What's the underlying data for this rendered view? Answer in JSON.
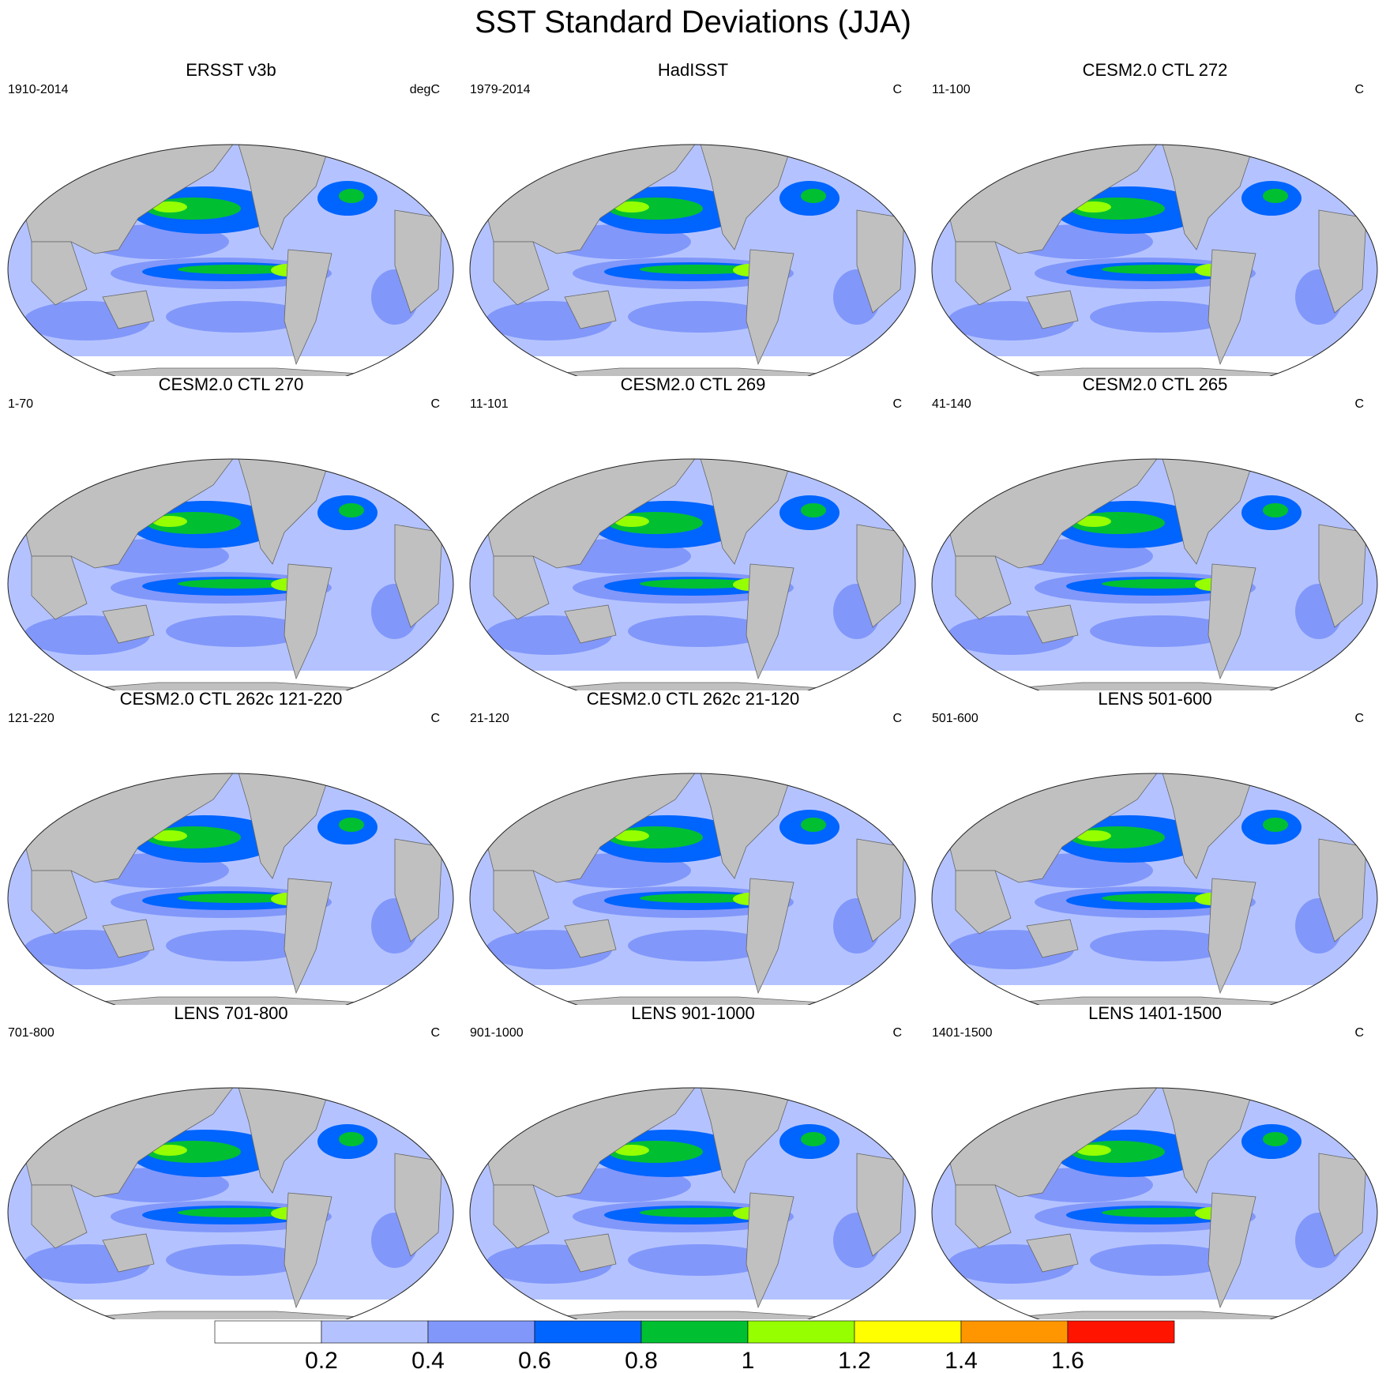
{
  "title": "SST Standard Deviations (JJA)",
  "panels": [
    {
      "title": "ERSST v3b",
      "period": "1910-2014",
      "units": "degC"
    },
    {
      "title": "HadISST",
      "period": "1979-2014",
      "units": "C"
    },
    {
      "title": "CESM2.0 CTL 272",
      "period": "11-100",
      "units": "C"
    },
    {
      "title": "CESM2.0 CTL 270",
      "period": "1-70",
      "units": "C"
    },
    {
      "title": "CESM2.0 CTL 269",
      "period": "11-101",
      "units": "C"
    },
    {
      "title": "CESM2.0 CTL 265",
      "period": "41-140",
      "units": "C"
    },
    {
      "title": "CESM2.0 CTL 262c 121-220",
      "period": "121-220",
      "units": "C"
    },
    {
      "title": "CESM2.0 CTL 262c 21-120",
      "period": "21-120",
      "units": "C"
    },
    {
      "title": "LENS 501-600",
      "period": "501-600",
      "units": "C"
    },
    {
      "title": "LENS 701-800",
      "period": "701-800",
      "units": "C"
    },
    {
      "title": "LENS 901-1000",
      "period": "901-1000",
      "units": "C"
    },
    {
      "title": "LENS 1401-1500",
      "period": "1401-1500",
      "units": "C"
    }
  ],
  "colorbar": {
    "labels": [
      "0.2",
      "0.4",
      "0.6",
      "0.8",
      "1",
      "1.2",
      "1.4",
      "1.6"
    ],
    "colors": [
      "#ffffff",
      "#b4c3ff",
      "#8297fa",
      "#0064ff",
      "#00c032",
      "#96ff00",
      "#ffff00",
      "#ff9600",
      "#ff1400"
    ]
  },
  "land_color": "#c0c0c0"
}
